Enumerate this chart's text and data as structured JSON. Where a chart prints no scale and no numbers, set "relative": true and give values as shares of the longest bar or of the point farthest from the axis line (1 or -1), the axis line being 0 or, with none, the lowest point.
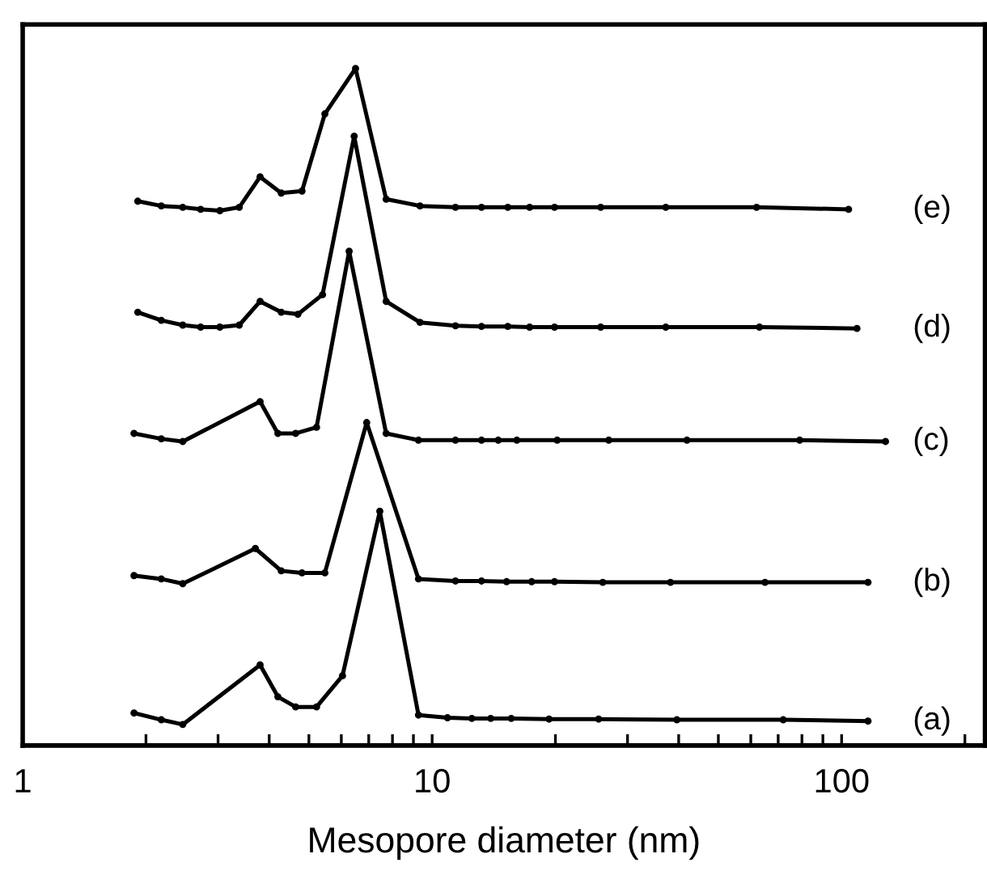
{
  "chart_data": {
    "type": "line",
    "xlabel": "Mesopore diameter (nm)",
    "relative": true,
    "log": "x",
    "marker": "circle",
    "line_style": "solid",
    "grid": false,
    "tick_labels": "x",
    "xlim": [
      1,
      224
    ],
    "xticks": [
      1,
      {
        "value": 2,
        "label": null
      },
      {
        "value": 3,
        "label": null
      },
      {
        "value": 4,
        "label": null
      },
      {
        "value": 5,
        "label": null
      },
      {
        "value": 6,
        "label": null
      },
      {
        "value": 7,
        "label": null
      },
      {
        "value": 8,
        "label": null
      },
      {
        "value": 9,
        "label": null
      },
      10,
      {
        "value": 20,
        "label": null
      },
      {
        "value": 30,
        "label": null
      },
      {
        "value": 40,
        "label": null
      },
      {
        "value": 50,
        "label": null
      },
      {
        "value": 60,
        "label": null
      },
      {
        "value": 70,
        "label": null
      },
      {
        "value": 80,
        "label": null
      },
      {
        "value": 90,
        "label": null
      },
      100,
      {
        "value": 200,
        "label": null
      }
    ],
    "series": [
      {
        "name": "(a)",
        "color": "#000000",
        "x": [
          1.87,
          2.18,
          2.46,
          3.8,
          4.2,
          4.64,
          5.22,
          6.04,
          7.45,
          9.26,
          10.9,
          12.5,
          13.9,
          15.6,
          19.3,
          25.5,
          39.6,
          72,
          116
        ],
        "values": [
          0.048,
          0.038,
          0.031,
          0.119,
          0.072,
          0.057,
          0.057,
          0.103,
          0.346,
          0.045,
          0.041,
          0.04,
          0.04,
          0.04,
          0.039,
          0.039,
          0.038,
          0.038,
          0.036
        ]
      },
      {
        "name": "(b)",
        "color": "#000000",
        "x": [
          1.87,
          2.18,
          2.46,
          3.7,
          4.28,
          4.81,
          5.47,
          6.92,
          9.26,
          11.4,
          13.2,
          15.2,
          17.5,
          19.9,
          26.1,
          38.2,
          65,
          116
        ],
        "values": [
          0.251,
          0.246,
          0.239,
          0.291,
          0.258,
          0.255,
          0.255,
          0.477,
          0.246,
          0.243,
          0.243,
          0.242,
          0.242,
          0.242,
          0.241,
          0.241,
          0.241,
          0.241
        ]
      },
      {
        "name": "(c)",
        "color": "#000000",
        "x": [
          1.87,
          2.18,
          2.46,
          3.8,
          4.2,
          4.64,
          5.22,
          6.27,
          7.72,
          9.26,
          11.4,
          13.2,
          14.5,
          16.1,
          20.2,
          27.0,
          41.9,
          79,
          128
        ],
        "values": [
          0.461,
          0.453,
          0.449,
          0.508,
          0.461,
          0.461,
          0.47,
          0.73,
          0.461,
          0.451,
          0.451,
          0.451,
          0.451,
          0.451,
          0.451,
          0.451,
          0.451,
          0.451,
          0.449
        ]
      },
      {
        "name": "(d)",
        "color": "#000000",
        "x": [
          1.91,
          2.18,
          2.46,
          2.72,
          3.03,
          3.38,
          3.8,
          4.28,
          4.7,
          5.4,
          6.45,
          7.72,
          9.34,
          11.4,
          13.2,
          15.3,
          17.3,
          19.9,
          25.8,
          37.2,
          63,
          109
        ],
        "values": [
          0.64,
          0.628,
          0.621,
          0.618,
          0.618,
          0.621,
          0.656,
          0.64,
          0.637,
          0.666,
          0.9,
          0.656,
          0.625,
          0.62,
          0.619,
          0.619,
          0.618,
          0.618,
          0.618,
          0.618,
          0.618,
          0.616
        ]
      },
      {
        "name": "(e)",
        "color": "#000000",
        "x": [
          1.91,
          2.18,
          2.46,
          2.72,
          3.03,
          3.38,
          3.8,
          4.28,
          4.81,
          5.47,
          6.5,
          7.72,
          9.34,
          11.4,
          13.2,
          15.3,
          17.3,
          19.9,
          25.8,
          37.2,
          62,
          104
        ],
        "values": [
          0.804,
          0.797,
          0.795,
          0.792,
          0.79,
          0.795,
          0.84,
          0.816,
          0.819,
          0.933,
          1.0,
          0.807,
          0.797,
          0.795,
          0.795,
          0.795,
          0.795,
          0.795,
          0.795,
          0.795,
          0.795,
          0.792
        ]
      }
    ]
  }
}
